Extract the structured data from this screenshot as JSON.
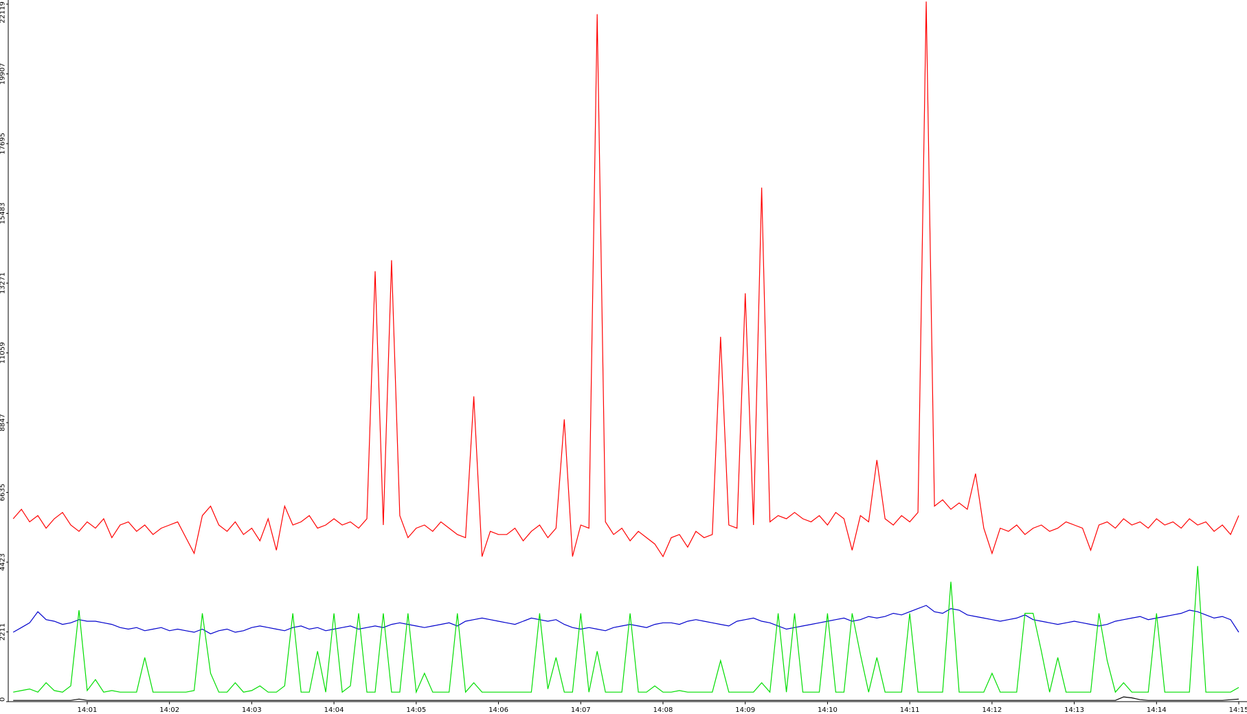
{
  "chart_data": {
    "type": "line",
    "x": [
      0.1,
      0.2,
      0.3,
      0.4,
      0.5,
      0.6,
      0.7,
      0.8,
      0.9,
      1.0,
      1.1,
      1.2,
      1.3,
      1.4,
      1.5,
      1.6,
      1.7,
      1.8,
      1.9,
      2.0,
      2.1,
      2.2,
      2.3,
      2.4,
      2.5,
      2.6,
      2.7,
      2.8,
      2.9,
      3.0,
      3.1,
      3.2,
      3.3,
      3.4,
      3.5,
      3.6,
      3.7,
      3.8,
      3.9,
      4.0,
      4.1,
      4.2,
      4.3,
      4.4,
      4.5,
      4.6,
      4.7,
      4.8,
      4.9,
      5.0,
      5.1,
      5.2,
      5.3,
      5.4,
      5.5,
      5.6,
      5.7,
      5.8,
      5.9,
      6.0,
      6.1,
      6.2,
      6.3,
      6.4,
      6.5,
      6.6,
      6.7,
      6.8,
      6.9,
      7.0,
      7.1,
      7.2,
      7.3,
      7.4,
      7.5,
      7.6,
      7.7,
      7.8,
      7.9,
      8.0,
      8.1,
      8.2,
      8.3,
      8.4,
      8.5,
      8.6,
      8.7,
      8.8,
      8.9,
      9.0,
      9.1,
      9.2,
      9.3,
      9.4,
      9.5,
      9.6,
      9.7,
      9.8,
      9.9,
      10.0,
      10.1,
      10.2,
      10.3,
      10.4,
      10.5,
      10.6,
      10.7,
      10.8,
      10.9,
      11.0,
      11.1,
      11.2,
      11.3,
      11.4,
      11.5,
      11.6,
      11.7,
      11.8,
      11.9,
      12.0,
      12.1,
      12.2,
      12.3,
      12.4,
      12.5,
      12.6,
      12.7,
      12.8,
      12.9,
      13.0,
      13.1,
      13.2,
      13.3,
      13.4,
      13.5,
      13.6,
      13.7,
      13.8,
      13.9,
      14.0,
      14.1,
      14.2,
      14.3,
      14.4,
      14.5,
      14.6,
      14.7,
      14.8,
      14.9,
      15.0
    ],
    "series": [
      {
        "color": "#ff0000",
        "values": [
          5800,
          6100,
          5700,
          5900,
          5500,
          5800,
          6000,
          5600,
          5400,
          5700,
          5500,
          5800,
          5200,
          5600,
          5700,
          5400,
          5600,
          5300,
          5500,
          5600,
          5700,
          5200,
          4700,
          5900,
          6200,
          5600,
          5400,
          5700,
          5300,
          5500,
          5100,
          5800,
          4800,
          6200,
          5600,
          5700,
          5900,
          5500,
          5600,
          5800,
          5600,
          5700,
          5500,
          5800,
          13650,
          5600,
          14000,
          5900,
          5200,
          5500,
          5600,
          5400,
          5700,
          5500,
          5300,
          5200,
          9680,
          4600,
          5400,
          5300,
          5300,
          5500,
          5100,
          5400,
          5600,
          5200,
          5500,
          8950,
          4600,
          5600,
          5500,
          21800,
          5700,
          5300,
          5500,
          5100,
          5400,
          5200,
          5000,
          4600,
          5200,
          5300,
          4900,
          5400,
          5200,
          5300,
          11570,
          5600,
          5500,
          12950,
          5600,
          16300,
          5700,
          5900,
          5800,
          6000,
          5800,
          5700,
          5900,
          5600,
          6000,
          5800,
          4800,
          5900,
          5700,
          7660,
          5800,
          5600,
          5900,
          5700,
          6000,
          22200,
          6200,
          6400,
          6100,
          6300,
          6100,
          7230,
          5500,
          4700,
          5500,
          5400,
          5600,
          5300,
          5500,
          5600,
          5400,
          5500,
          5700,
          5600,
          5500,
          4800,
          5600,
          5700,
          5500,
          5800,
          5600,
          5700,
          5500,
          5800,
          5600,
          5700,
          5500,
          5800,
          5600,
          5700,
          5400,
          5600,
          5300,
          5900
        ]
      },
      {
        "color": "#0000cc",
        "values": [
          2200,
          2350,
          2500,
          2850,
          2600,
          2550,
          2450,
          2500,
          2600,
          2550,
          2550,
          2500,
          2450,
          2350,
          2300,
          2350,
          2250,
          2300,
          2350,
          2250,
          2300,
          2250,
          2200,
          2300,
          2150,
          2250,
          2300,
          2200,
          2250,
          2350,
          2400,
          2350,
          2300,
          2250,
          2350,
          2400,
          2300,
          2350,
          2250,
          2300,
          2350,
          2400,
          2300,
          2350,
          2400,
          2350,
          2450,
          2500,
          2450,
          2400,
          2350,
          2400,
          2450,
          2500,
          2400,
          2550,
          2600,
          2650,
          2600,
          2550,
          2500,
          2450,
          2550,
          2650,
          2600,
          2550,
          2600,
          2450,
          2350,
          2300,
          2350,
          2300,
          2250,
          2350,
          2400,
          2450,
          2400,
          2350,
          2450,
          2500,
          2500,
          2450,
          2550,
          2600,
          2550,
          2500,
          2450,
          2400,
          2550,
          2600,
          2650,
          2550,
          2500,
          2400,
          2300,
          2350,
          2400,
          2450,
          2500,
          2550,
          2600,
          2650,
          2550,
          2600,
          2700,
          2650,
          2700,
          2800,
          2750,
          2850,
          2950,
          3050,
          2850,
          2800,
          2950,
          2900,
          2750,
          2700,
          2650,
          2600,
          2550,
          2600,
          2650,
          2750,
          2600,
          2550,
          2500,
          2450,
          2500,
          2550,
          2500,
          2450,
          2400,
          2450,
          2550,
          2600,
          2650,
          2700,
          2600,
          2650,
          2700,
          2750,
          2800,
          2900,
          2850,
          2750,
          2650,
          2700,
          2600,
          2200
        ]
      },
      {
        "color": "#00dd00",
        "values": [
          300,
          350,
          400,
          300,
          600,
          350,
          300,
          500,
          2900,
          350,
          700,
          300,
          350,
          300,
          300,
          300,
          1400,
          300,
          300,
          300,
          300,
          300,
          350,
          2800,
          900,
          300,
          300,
          600,
          300,
          350,
          500,
          300,
          300,
          500,
          2800,
          300,
          300,
          1600,
          300,
          2800,
          300,
          500,
          2800,
          300,
          300,
          2800,
          300,
          300,
          2800,
          300,
          900,
          300,
          300,
          300,
          2800,
          300,
          600,
          300,
          300,
          300,
          300,
          300,
          300,
          300,
          2800,
          400,
          1400,
          300,
          300,
          2800,
          300,
          1600,
          300,
          300,
          300,
          2800,
          300,
          300,
          500,
          300,
          300,
          350,
          300,
          300,
          300,
          300,
          1300,
          300,
          300,
          300,
          300,
          600,
          300,
          2800,
          300,
          2800,
          300,
          300,
          300,
          2800,
          300,
          300,
          2800,
          1500,
          300,
          1400,
          300,
          300,
          300,
          2800,
          300,
          300,
          300,
          300,
          3800,
          300,
          300,
          300,
          300,
          900,
          300,
          300,
          300,
          2800,
          2800,
          1600,
          300,
          1400,
          300,
          300,
          300,
          300,
          2800,
          1300,
          300,
          600,
          300,
          300,
          300,
          2800,
          300,
          300,
          300,
          300,
          4300,
          300,
          300,
          300,
          300,
          450
        ]
      },
      {
        "color": "#000000",
        "values": [
          40,
          40,
          40,
          40,
          40,
          40,
          40,
          40,
          80,
          40,
          40,
          40,
          40,
          40,
          40,
          40,
          40,
          40,
          40,
          40,
          40,
          40,
          40,
          40,
          40,
          40,
          40,
          40,
          40,
          40,
          40,
          40,
          40,
          40,
          40,
          40,
          40,
          40,
          40,
          40,
          40,
          40,
          40,
          40,
          40,
          40,
          40,
          40,
          40,
          40,
          40,
          40,
          40,
          40,
          40,
          40,
          40,
          40,
          40,
          40,
          40,
          40,
          40,
          40,
          40,
          40,
          40,
          40,
          40,
          40,
          40,
          40,
          40,
          40,
          40,
          40,
          40,
          40,
          40,
          40,
          40,
          40,
          40,
          40,
          40,
          40,
          40,
          40,
          40,
          40,
          40,
          40,
          40,
          40,
          40,
          40,
          40,
          40,
          40,
          40,
          40,
          40,
          40,
          40,
          40,
          40,
          40,
          40,
          40,
          40,
          40,
          40,
          40,
          40,
          40,
          40,
          40,
          40,
          40,
          40,
          40,
          40,
          40,
          40,
          40,
          40,
          40,
          40,
          40,
          40,
          40,
          40,
          40,
          40,
          40,
          150,
          120,
          60,
          40,
          40,
          40,
          40,
          40,
          40,
          40,
          40,
          40,
          40,
          60,
          80
        ]
      }
    ],
    "xlim": [
      0.04,
      15.1
    ],
    "xticks": [
      {
        "value": 1,
        "label": "14:01"
      },
      {
        "value": 2,
        "label": "14:02"
      },
      {
        "value": 3,
        "label": "14:03"
      },
      {
        "value": 4,
        "label": "14:04"
      },
      {
        "value": 5,
        "label": "14:05"
      },
      {
        "value": 6,
        "label": "14:06"
      },
      {
        "value": 7,
        "label": "14:07"
      },
      {
        "value": 8,
        "label": "14:08"
      },
      {
        "value": 9,
        "label": "14:09"
      },
      {
        "value": 10,
        "label": "14:10"
      },
      {
        "value": 11,
        "label": "14:11"
      },
      {
        "value": 12,
        "label": "14:12"
      },
      {
        "value": 13,
        "label": "14:13"
      },
      {
        "value": 14,
        "label": "14:14"
      },
      {
        "value": 15,
        "label": "14:15"
      }
    ],
    "ylim": [
      0,
      22250
    ],
    "yticks": [
      0,
      2211,
      4423,
      6635,
      8847,
      11059,
      13271,
      15483,
      17695,
      19907,
      22119
    ],
    "grid": false
  }
}
